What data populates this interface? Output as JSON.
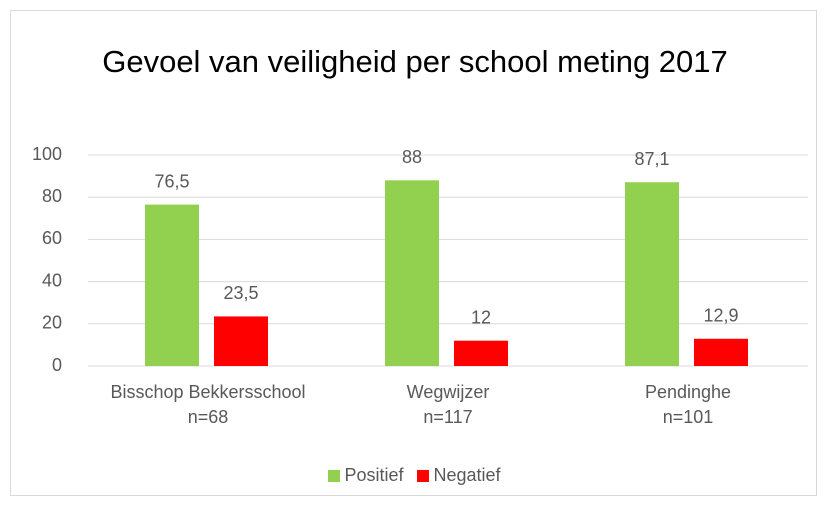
{
  "chart_data": {
    "type": "bar",
    "title": "Gevoel van veiligheid per school meting 2017",
    "categories": [
      "Bisschop Bekkersschool\nn=68",
      "Wegwijzer\nn=117",
      "Pendinghe\nn=101"
    ],
    "series": [
      {
        "name": "Positief",
        "color": "#92d050",
        "values": [
          76.5,
          88,
          87.1
        ],
        "value_labels": [
          "76,5",
          "88",
          "87,1"
        ]
      },
      {
        "name": "Negatief",
        "color": "#ff0000",
        "values": [
          23.5,
          12,
          12.9
        ],
        "value_labels": [
          "23,5",
          "12",
          "12,9"
        ]
      }
    ],
    "ylim": [
      0,
      100
    ],
    "yticks": [
      0,
      20,
      40,
      60,
      80,
      100
    ],
    "grid": true,
    "legend": "bottom"
  }
}
